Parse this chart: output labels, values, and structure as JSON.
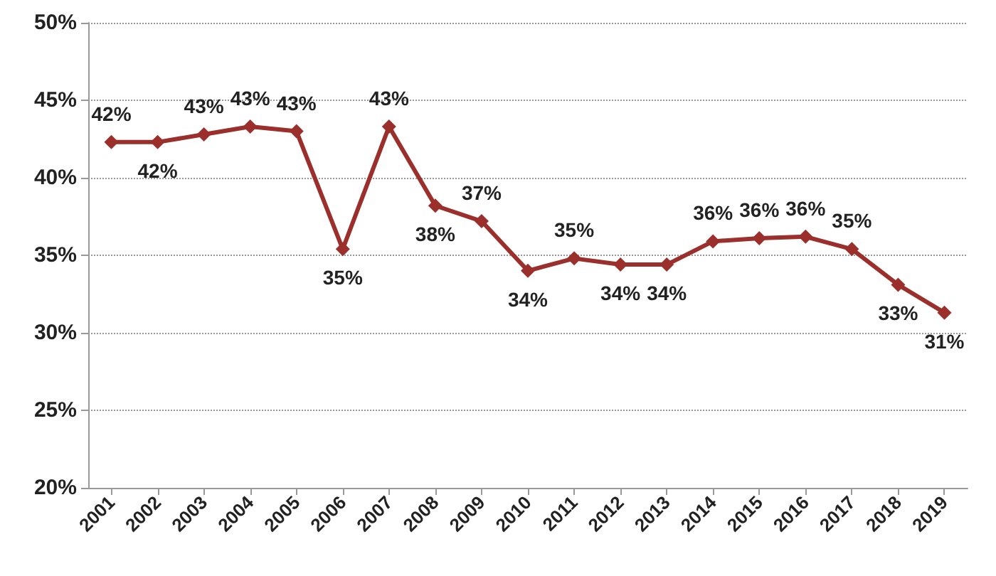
{
  "chart_data": {
    "type": "line",
    "categories": [
      "2001",
      "2002",
      "2003",
      "2004",
      "2005",
      "2006",
      "2007",
      "2008",
      "2009",
      "2010",
      "2011",
      "2012",
      "2013",
      "2014",
      "2015",
      "2016",
      "2017",
      "2018",
      "2019"
    ],
    "series": [
      {
        "color": "#9b2f2b",
        "values": [
          42.3,
          42.3,
          42.8,
          43.3,
          43.0,
          35.4,
          43.3,
          38.2,
          37.2,
          34.0,
          34.8,
          34.4,
          34.4,
          35.9,
          36.1,
          36.2,
          35.4,
          33.1,
          31.3
        ],
        "value_labels": [
          "42%",
          "42%",
          "43%",
          "43%",
          "43%",
          "35%",
          "43%",
          "38%",
          "37%",
          "34%",
          "35%",
          "34%",
          "34%",
          "36%",
          "36%",
          "36%",
          "35%",
          "33%",
          "31%"
        ]
      }
    ],
    "ylim": [
      20,
      50
    ],
    "yticks": [
      {
        "value": 20,
        "label": "20%"
      },
      {
        "value": 25,
        "label": "25%"
      },
      {
        "value": 30,
        "label": "30%"
      },
      {
        "value": 35,
        "label": "35%"
      },
      {
        "value": 40,
        "label": "40%"
      },
      {
        "value": 45,
        "label": "45%"
      },
      {
        "value": 50,
        "label": "50%"
      }
    ],
    "grid": "y",
    "marker": "diamond",
    "line_style": "solid"
  }
}
